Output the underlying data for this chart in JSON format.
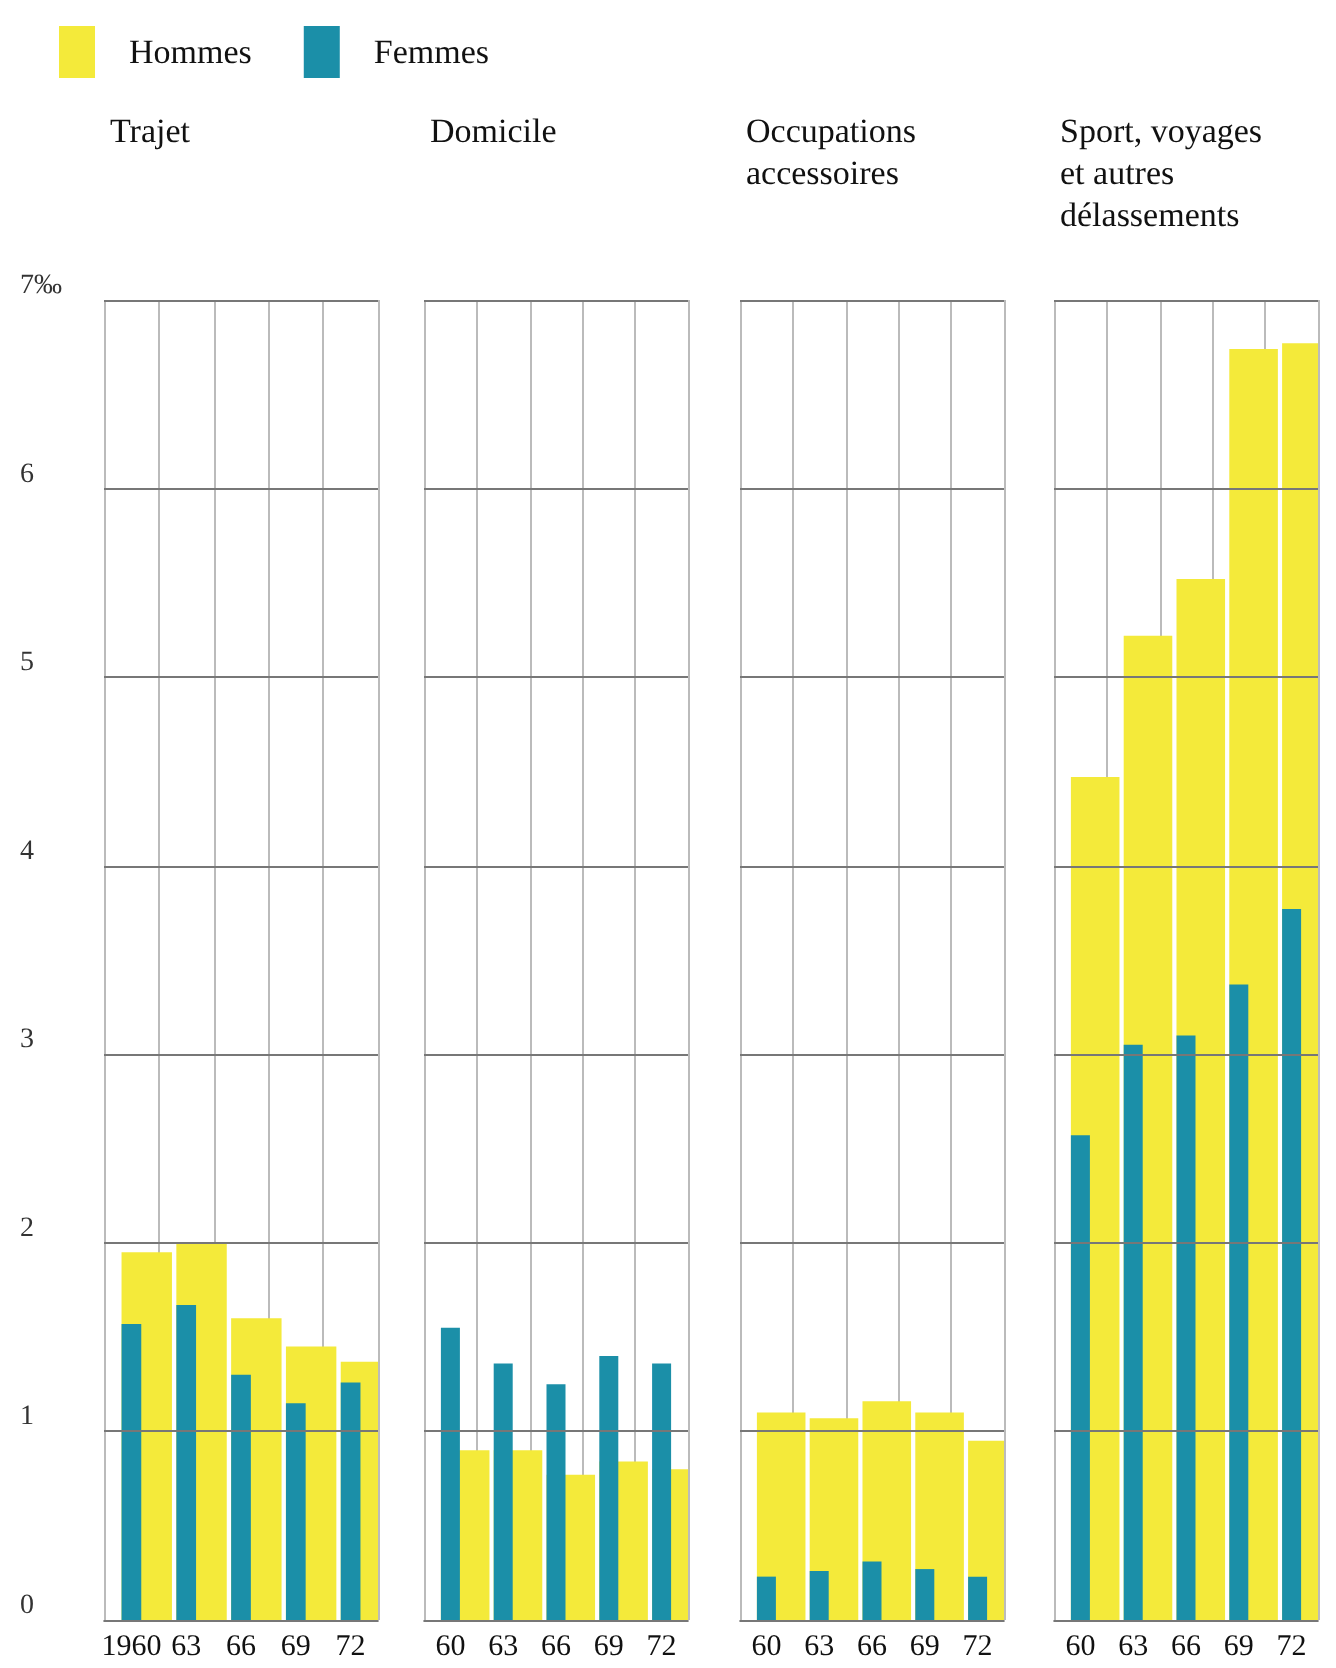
{
  "chart_data": [
    {
      "type": "bar",
      "title": "Trajet",
      "categories": [
        "1960",
        "63",
        "66",
        "69",
        "72"
      ],
      "series": [
        {
          "name": "Hommes",
          "color": "#f4ea3a",
          "values": [
            1.95,
            2.0,
            1.6,
            1.45,
            1.37
          ]
        },
        {
          "name": "Femmes",
          "color": "#1b8fa8",
          "values": [
            1.57,
            1.67,
            1.3,
            1.15,
            1.26
          ]
        }
      ],
      "ylim": [
        0,
        7
      ],
      "yticks": [
        0,
        1,
        2,
        3,
        4,
        5,
        6,
        {
          "value": 7,
          "label": "7‰"
        }
      ],
      "grid": true,
      "legend": "top"
    },
    {
      "type": "bar",
      "title": "Domicile",
      "categories": [
        "60",
        "63",
        "66",
        "69",
        "72"
      ],
      "series": [
        {
          "color": "#f4ea3a",
          "values": [
            0.9,
            0.9,
            0.77,
            0.84,
            0.8
          ]
        },
        {
          "color": "#1b8fa8",
          "values": [
            1.55,
            1.36,
            1.25,
            1.4,
            1.36
          ]
        }
      ],
      "ylim": [
        0,
        7
      ],
      "yticks": [
        0,
        1,
        2,
        3,
        4,
        5,
        6,
        7
      ],
      "grid": true,
      "tick_labels": "x"
    },
    {
      "type": "bar",
      "title": "Occupations\naccessoires",
      "categories": [
        "60",
        "63",
        "66",
        "69",
        "72"
      ],
      "series": [
        {
          "color": "#f4ea3a",
          "values": [
            1.1,
            1.07,
            1.16,
            1.1,
            0.95
          ]
        },
        {
          "color": "#1b8fa8",
          "values": [
            0.23,
            0.26,
            0.31,
            0.27,
            0.23
          ]
        }
      ],
      "ylim": [
        0,
        7
      ],
      "yticks": [
        0,
        1,
        2,
        3,
        4,
        5,
        6,
        7
      ],
      "grid": true,
      "tick_labels": "x"
    },
    {
      "type": "bar",
      "title": "Sport, voyages\net autres\ndélassements",
      "categories": [
        "60",
        "63",
        "66",
        "69",
        "72"
      ],
      "series": [
        {
          "color": "#f4ea3a",
          "values": [
            4.47,
            5.22,
            5.52,
            6.74,
            6.77
          ]
        },
        {
          "color": "#1b8fa8",
          "values": [
            2.57,
            3.05,
            3.1,
            3.37,
            3.77
          ]
        }
      ],
      "ylim": [
        0,
        7
      ],
      "yticks": [
        0,
        1,
        2,
        3,
        4,
        5,
        6,
        7
      ],
      "grid": true,
      "tick_labels": "x"
    }
  ]
}
